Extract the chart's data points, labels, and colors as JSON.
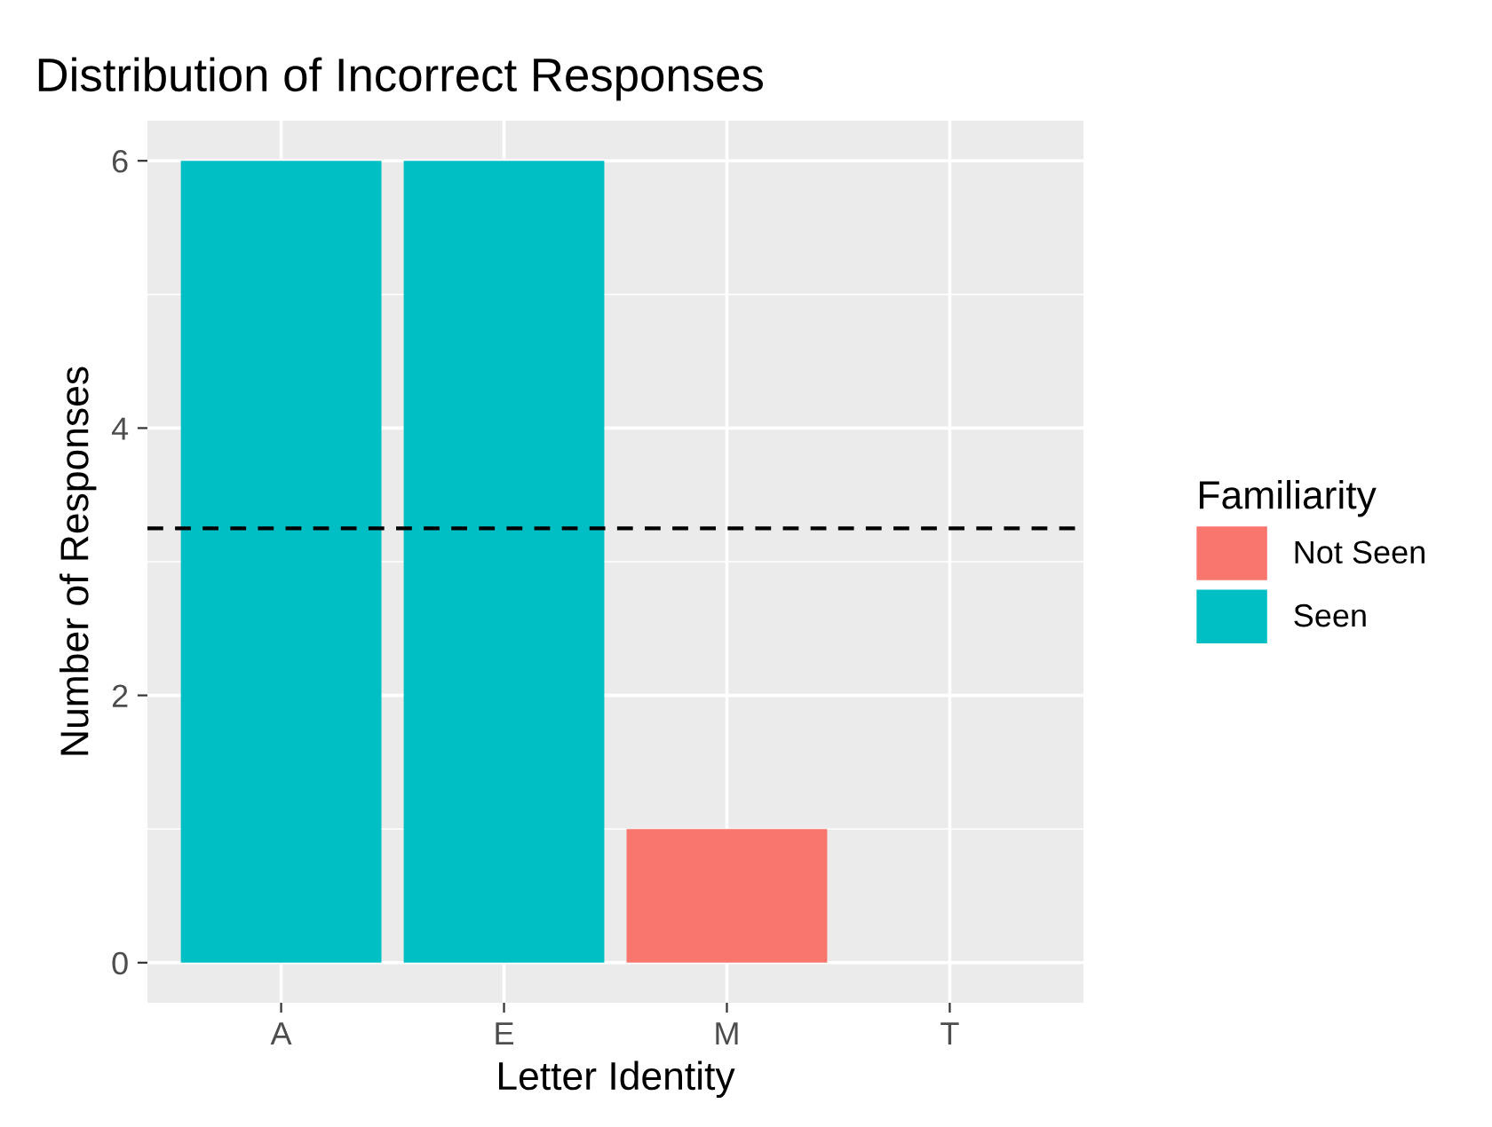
{
  "chart_data": {
    "type": "bar",
    "title": "Distribution of Incorrect Responses",
    "xlabel": "Letter Identity",
    "ylabel": "Number of Responses",
    "legend_title": "Familiarity",
    "categories": [
      "A",
      "E",
      "M",
      "T"
    ],
    "series": [
      {
        "name": "Not Seen",
        "color": "#f8766d",
        "values": [
          null,
          null,
          1,
          null
        ]
      },
      {
        "name": "Seen",
        "color": "#00bfc4",
        "values": [
          6,
          6,
          null,
          null
        ]
      }
    ],
    "ylim": [
      -0.3,
      6.3
    ],
    "yticks": [
      0,
      2,
      4,
      6
    ],
    "grid": true,
    "legend": "right",
    "ref_lines": [
      {
        "axis": "y",
        "value": 3.25,
        "line_style": "dashed",
        "color": "#000000"
      }
    ]
  }
}
